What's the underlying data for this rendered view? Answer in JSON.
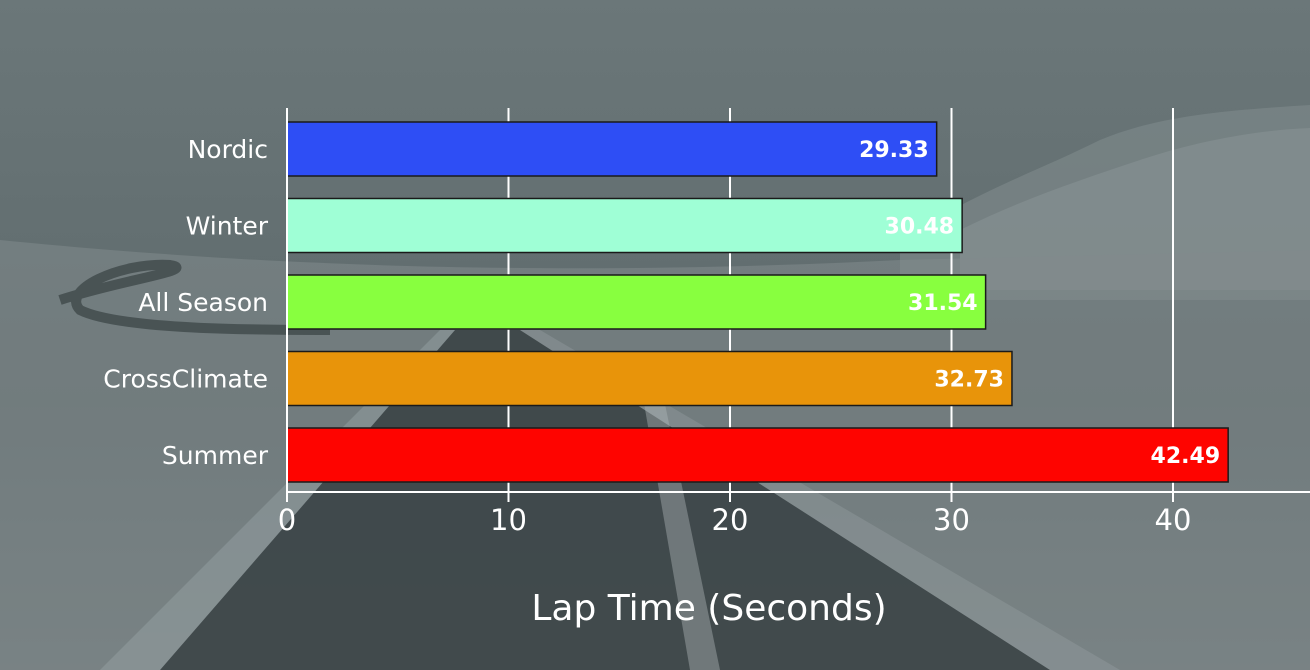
{
  "chart_data": {
    "type": "bar",
    "orientation": "horizontal",
    "title": "",
    "xlabel": "Lap Time (Seconds)",
    "ylabel": "",
    "categories": [
      "Nordic",
      "Winter",
      "All Season",
      "CrossClimate",
      "Summer"
    ],
    "values": [
      29.33,
      30.48,
      31.54,
      32.73,
      42.49
    ],
    "value_labels": [
      "29.33",
      "30.48",
      "31.54",
      "32.73",
      "42.49"
    ],
    "bar_colors": [
      "#2e4ef5",
      "#9fffd6",
      "#88ff3f",
      "#e8940a",
      "#fe0400"
    ],
    "xlim": [
      0,
      46
    ],
    "xticks": [
      0,
      10,
      20,
      30,
      40
    ],
    "xtick_labels": [
      "0",
      "10",
      "20",
      "30",
      "40"
    ],
    "grid": true,
    "legend": "none"
  },
  "background": {
    "description_color": "#5f6b6d",
    "road_color": "#3b4446",
    "snow_color": "#9aa4a6"
  }
}
